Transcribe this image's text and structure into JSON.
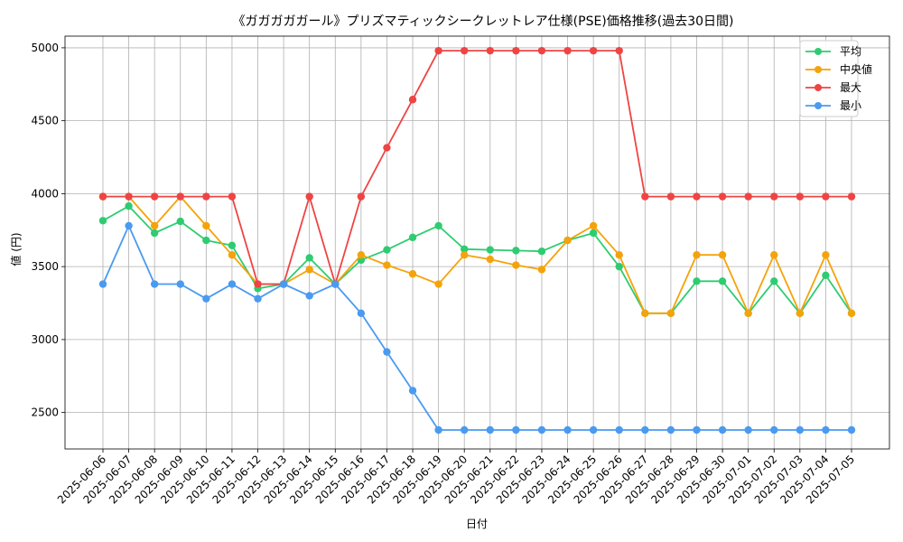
{
  "chart_data": {
    "type": "line",
    "title": "《ガガガガガール》プリズマティックシークレットレア仕様(PSE)価格推移(過去30日間)",
    "xlabel": "日付",
    "ylabel": "値 (円)",
    "ylim": [
      2250,
      5080
    ],
    "yticks": [
      2500,
      3000,
      3500,
      4000,
      4500,
      5000
    ],
    "grid": true,
    "legend_position": "top-right",
    "categories": [
      "2025-06-06",
      "2025-06-07",
      "2025-06-08",
      "2025-06-09",
      "2025-06-10",
      "2025-06-11",
      "2025-06-12",
      "2025-06-13",
      "2025-06-14",
      "2025-06-15",
      "2025-06-16",
      "2025-06-17",
      "2025-06-18",
      "2025-06-19",
      "2025-06-20",
      "2025-06-21",
      "2025-06-22",
      "2025-06-23",
      "2025-06-24",
      "2025-06-25",
      "2025-06-26",
      "2025-06-27",
      "2025-06-28",
      "2025-06-29",
      "2025-06-30",
      "2025-07-01",
      "2025-07-02",
      "2025-07-03",
      "2025-07-04",
      "2025-07-05"
    ],
    "series": [
      {
        "name": "平均",
        "color": "#2ecc71",
        "values": [
          3815,
          3915,
          3730,
          3810,
          3680,
          3645,
          3350,
          3380,
          3560,
          3380,
          3545,
          3615,
          3700,
          3780,
          3620,
          3615,
          3610,
          3605,
          3680,
          3730,
          3500,
          3180,
          3180,
          3400,
          3400,
          3180,
          3400,
          3180,
          3440,
          3180
        ]
      },
      {
        "name": "中央値",
        "color": "#f5a30a",
        "values": [
          3980,
          3980,
          3780,
          3980,
          3780,
          3580,
          3380,
          3380,
          3480,
          3380,
          3580,
          3510,
          3450,
          3380,
          3580,
          3550,
          3510,
          3480,
          3680,
          3780,
          3580,
          3180,
          3180,
          3580,
          3580,
          3180,
          3580,
          3180,
          3580,
          3180
        ]
      },
      {
        "name": "最大",
        "color": "#ef4444",
        "values": [
          3980,
          3980,
          3980,
          3980,
          3980,
          3980,
          3380,
          3380,
          3980,
          3380,
          3980,
          4315,
          4645,
          4980,
          4980,
          4980,
          4980,
          4980,
          4980,
          4980,
          4980,
          3980,
          3980,
          3980,
          3980,
          3980,
          3980,
          3980,
          3980,
          3980
        ]
      },
      {
        "name": "最小",
        "color": "#4a9af0",
        "values": [
          3380,
          3780,
          3380,
          3380,
          3280,
          3380,
          3280,
          3380,
          3300,
          3380,
          3180,
          2915,
          2650,
          2380,
          2380,
          2380,
          2380,
          2380,
          2380,
          2380,
          2380,
          2380,
          2380,
          2380,
          2380,
          2380,
          2380,
          2380,
          2380,
          2380
        ]
      }
    ]
  }
}
